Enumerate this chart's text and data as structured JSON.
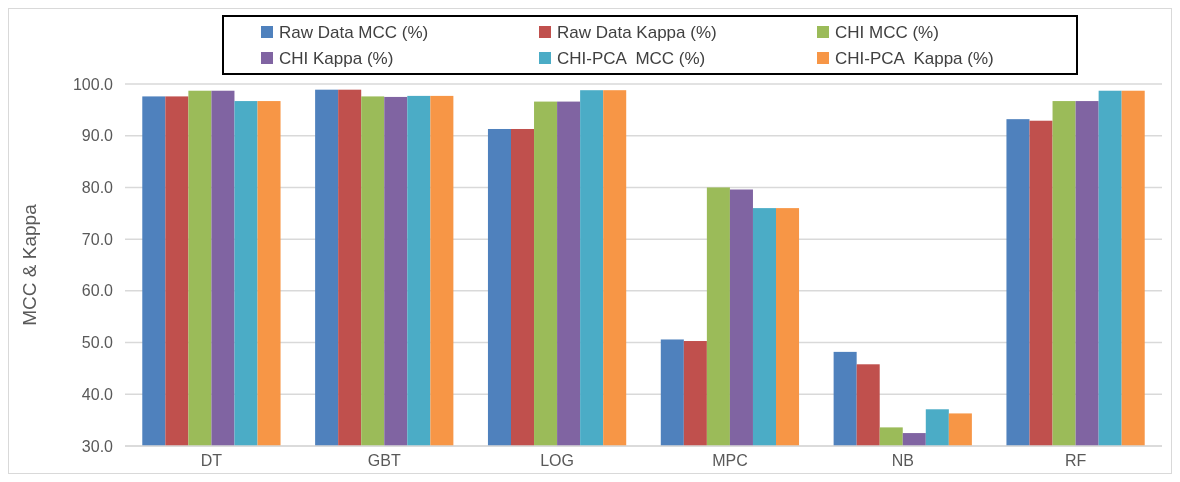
{
  "chart_data": {
    "type": "bar",
    "ylabel": "MCC & Kappa",
    "categories": [
      "DT",
      "GBT",
      "LOG",
      "MPC",
      "NB",
      "RF"
    ],
    "series": [
      {
        "name": "Raw Data MCC (%)",
        "color": "#4f81bd",
        "values": [
          97.6,
          98.9,
          91.3,
          50.6,
          48.2,
          93.2
        ]
      },
      {
        "name": "Raw Data Kappa (%)",
        "color": "#c0504d",
        "values": [
          97.6,
          98.9,
          91.3,
          50.3,
          45.8,
          92.9
        ]
      },
      {
        "name": "CHI MCC (%)",
        "color": "#9bbb59",
        "values": [
          98.7,
          97.6,
          96.6,
          80.0,
          33.6,
          96.7
        ]
      },
      {
        "name": "CHI Kappa (%)",
        "color": "#8064a2",
        "values": [
          98.7,
          97.5,
          96.6,
          79.6,
          32.5,
          96.7
        ]
      },
      {
        "name": "CHI-PCA  MCC (%)",
        "color": "#4bacc6",
        "values": [
          96.7,
          97.7,
          98.8,
          76.0,
          37.1,
          98.7
        ]
      },
      {
        "name": "CHI-PCA  Kappa (%)",
        "color": "#f79646",
        "values": [
          96.7,
          97.7,
          98.8,
          76.0,
          36.3,
          98.7
        ]
      }
    ],
    "ylim": [
      30,
      100
    ],
    "yticks": [
      {
        "value": 30,
        "label": "30.0"
      },
      {
        "value": 40,
        "label": "40.0"
      },
      {
        "value": 50,
        "label": "50.0"
      },
      {
        "value": 60,
        "label": "60.0"
      },
      {
        "value": 70,
        "label": "70.0"
      },
      {
        "value": 80,
        "label": "80.0"
      },
      {
        "value": 90,
        "label": "90.0"
      },
      {
        "value": 100,
        "label": "100.0"
      }
    ],
    "grid": "y",
    "legend": "top"
  }
}
